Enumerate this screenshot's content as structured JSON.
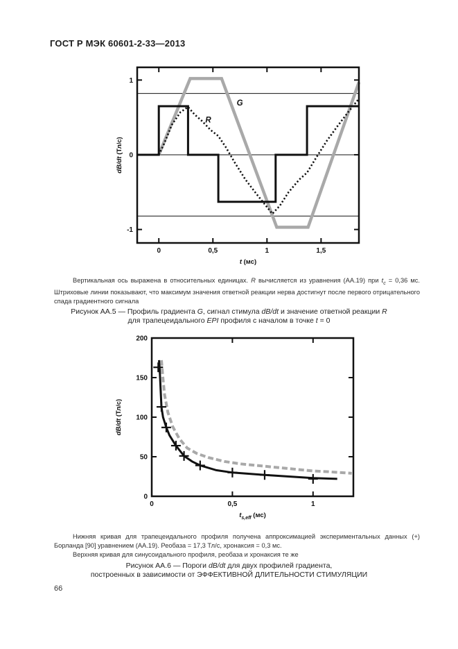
{
  "page": {
    "header_title": "ГОСТ Р МЭК 60601-2-33—2013",
    "page_number": "66"
  },
  "figure_aa5": {
    "note_segments": [
      {
        "t": "Вертикальная ось выражена в относительных единицах. "
      },
      {
        "t": "R",
        "i": true
      },
      {
        "t": " вычисляется из уравнения (АА.19) при "
      },
      {
        "t": "t",
        "i": true
      },
      {
        "t": "c",
        "i": true,
        "sub": true
      },
      {
        "t": " = 0,36 мс. Штриховые линии показывают, что максимум значения ответной реакции нерва достигнут после первого отрицательного спада градиентного сигнала"
      }
    ],
    "caption_line1": [
      {
        "t": "Рисунок АА.5 — Профиль градиента "
      },
      {
        "t": "G",
        "i": true
      },
      {
        "t": ", сигнал стимула "
      },
      {
        "t": "dB/dt",
        "i": true
      },
      {
        "t": " и значение ответной реакции "
      },
      {
        "t": "R",
        "i": true
      }
    ],
    "caption_line2": [
      {
        "t": "для трапецеидального "
      },
      {
        "t": "EPI",
        "i": true
      },
      {
        "t": " профиля с началом в точке "
      },
      {
        "t": "t",
        "i": true
      },
      {
        "t": " = 0"
      }
    ]
  },
  "figure_aa6": {
    "note_par1": "Нижняя кривая для трапецеидального профиля получена аппроксимацией экспериментальных данных (+) Борланда [90] уравнением (АА.19). Реобаза = 17,3 Тл/с, хронаксия = 0,3 мс.",
    "note_par2": "Верхняя кривая для синусоидального профиля, реобаза и хронаксия те же",
    "caption_line1": [
      {
        "t": "Рисунок АА.6 — Пороги "
      },
      {
        "t": "dB/dt",
        "i": true
      },
      {
        "t": " для двух профилей градиента,"
      }
    ],
    "caption_line2": [
      {
        "t": "построенных в зависимости от ЭФФЕКТИВНОЙ ДЛИТЕЛЬНОСТИ СТИМУЛЯЦИИ"
      }
    ]
  },
  "chart_data": [
    {
      "type": "line",
      "title": "Профиль градиента G, сигнал стимула dB/dt и ответная реакция R",
      "xlabel": {
        "main": "t",
        "sub": "",
        "unit": " (мс)"
      },
      "ylabel": {
        "main": "dB/dt",
        "unit": " (Тл/с)"
      },
      "xlim": [
        -0.2,
        1.85
      ],
      "ylim": [
        -1.18,
        1.17
      ],
      "xticks": [
        0,
        0.5,
        1,
        1.5
      ],
      "xtick_labels": [
        "0",
        "0,5",
        "1",
        "1,5"
      ],
      "yticks": [
        -1,
        0,
        1
      ],
      "ytick_labels": [
        "-1",
        "0",
        "1"
      ],
      "grid": false,
      "hlines": [
        0.82,
        0,
        -0.82
      ],
      "series": [
        {
          "name": "G — профиль градиента",
          "color": "#a9a9a9",
          "width": 4.5,
          "points": [
            [
              0,
              0
            ],
            [
              0.29,
              1.02
            ],
            [
              0.58,
              1.02
            ],
            [
              1.09,
              -0.97
            ],
            [
              1.38,
              -0.97
            ],
            [
              1.85,
              0.97
            ]
          ]
        },
        {
          "name": "dB/dt — сигнал стимула",
          "color": "#111111",
          "width": 3,
          "points": [
            [
              -0.2,
              0
            ],
            [
              0,
              0
            ],
            [
              0,
              0.65
            ],
            [
              0.27,
              0.65
            ],
            [
              0.27,
              0
            ],
            [
              0.55,
              0
            ],
            [
              0.55,
              -0.63
            ],
            [
              1.08,
              -0.63
            ],
            [
              1.08,
              0
            ],
            [
              1.37,
              0
            ],
            [
              1.37,
              0.65
            ],
            [
              1.85,
              0.65
            ]
          ]
        },
        {
          "name": "R — ответная реакция",
          "color": "#111111",
          "width": 2.6,
          "dash": "2.2 3",
          "points": [
            [
              -0.2,
              0
            ],
            [
              0,
              0
            ],
            [
              0.05,
              0.15
            ],
            [
              0.12,
              0.4
            ],
            [
              0.2,
              0.57
            ],
            [
              0.27,
              0.64
            ],
            [
              0.33,
              0.54
            ],
            [
              0.4,
              0.45
            ],
            [
              0.48,
              0.33
            ],
            [
              0.55,
              0.25
            ],
            [
              0.62,
              0.1
            ],
            [
              0.7,
              -0.1
            ],
            [
              0.8,
              -0.33
            ],
            [
              0.9,
              -0.52
            ],
            [
              1,
              -0.7
            ],
            [
              1.05,
              -0.79
            ],
            [
              1.12,
              -0.68
            ],
            [
              1.2,
              -0.5
            ],
            [
              1.3,
              -0.33
            ],
            [
              1.37,
              -0.24
            ],
            [
              1.45,
              -0.05
            ],
            [
              1.55,
              0.18
            ],
            [
              1.65,
              0.38
            ],
            [
              1.75,
              0.57
            ],
            [
              1.85,
              0.75
            ]
          ]
        }
      ],
      "annotations": [
        {
          "text": "G",
          "x": 0.72,
          "y": 0.66
        },
        {
          "text": "R",
          "x": 0.43,
          "y": 0.43
        }
      ]
    },
    {
      "type": "line",
      "title": "Пороги dB/dt для двух профилей градиента",
      "xlabel": {
        "main": "t",
        "sub": "s,eff",
        "unit": " (мс)"
      },
      "ylabel": {
        "main": "dB/dt",
        "unit": " (Тл/с)"
      },
      "xlim": [
        0,
        1.25
      ],
      "ylim": [
        0,
        200
      ],
      "xticks": [
        0,
        0.5,
        1
      ],
      "xtick_labels": [
        "0",
        "0,5",
        "1"
      ],
      "yticks": [
        0,
        50,
        100,
        150,
        200
      ],
      "ytick_labels": [
        "0",
        "50",
        "100",
        "150",
        "200"
      ],
      "grid": false,
      "rheobase": "17,3 Тл/с",
      "chronaxie": "0,3 мс",
      "series": [
        {
          "name": "синусоидальный профиль (верхняя кривая)",
          "color": "#a9a9a9",
          "width": 4,
          "dash": "8 4",
          "points": [
            [
              0.06,
              172
            ],
            [
              0.07,
              148
            ],
            [
              0.08,
              128
            ],
            [
              0.1,
              106
            ],
            [
              0.13,
              88
            ],
            [
              0.17,
              73
            ],
            [
              0.22,
              61
            ],
            [
              0.28,
              54
            ],
            [
              0.35,
              49
            ],
            [
              0.45,
              44
            ],
            [
              0.55,
              41
            ],
            [
              0.7,
              38
            ],
            [
              0.85,
              35
            ],
            [
              1,
              32
            ],
            [
              1.1,
              31
            ],
            [
              1.24,
              29
            ]
          ]
        },
        {
          "name": "трапецеидальный профиль (нижняя кривая)",
          "color": "#111111",
          "width": 3,
          "points": [
            [
              0.045,
              172
            ],
            [
              0.05,
              158
            ],
            [
              0.06,
              113
            ],
            [
              0.07,
              100
            ],
            [
              0.09,
              87
            ],
            [
              0.11,
              77
            ],
            [
              0.15,
              64
            ],
            [
              0.2,
              51
            ],
            [
              0.25,
              44
            ],
            [
              0.3,
              39
            ],
            [
              0.4,
              33
            ],
            [
              0.5,
              30
            ],
            [
              0.7,
              27
            ],
            [
              0.85,
              25
            ],
            [
              1,
              23
            ],
            [
              1.15,
              22
            ]
          ]
        }
      ],
      "markers": {
        "shape": "plus",
        "name": "экспериментальные данные (+) Борланда [90]",
        "color": "#111111",
        "size": 14,
        "points": [
          [
            0.04,
            163
          ],
          [
            0.06,
            113
          ],
          [
            0.09,
            87
          ],
          [
            0.15,
            64
          ],
          [
            0.2,
            51
          ],
          [
            0.3,
            39
          ],
          [
            0.5,
            30
          ],
          [
            0.7,
            27
          ],
          [
            1,
            22
          ]
        ]
      }
    }
  ]
}
